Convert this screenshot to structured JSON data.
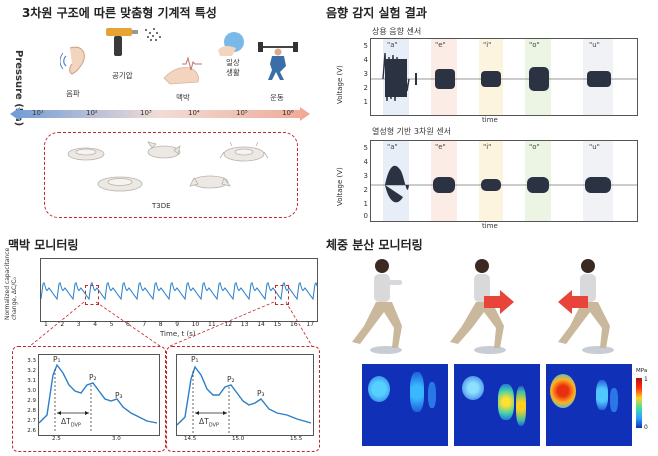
{
  "panels": {
    "top_left": {
      "title": "3차원 구조에 따른 맞춤형 기계적 특성",
      "axis_label": "Pressure\n(Pa)",
      "icons": [
        {
          "label": "음파",
          "icon": "ear-icon"
        },
        {
          "label": "공기압",
          "icon": "air-blower-icon"
        },
        {
          "label": "맥박",
          "icon": "pulse-icon"
        },
        {
          "label": "일상\n생활",
          "icon": "hand-ball-icon"
        },
        {
          "label": "운동",
          "icon": "weightlifting-icon"
        }
      ],
      "scale_ticks": [
        "10¹",
        "10²",
        "10³",
        "10⁴",
        "10⁵",
        "10⁶"
      ],
      "device_label": "T3DE"
    },
    "top_right": {
      "title": "음향 감지 실험 결과",
      "plot1_title": "상용 음향 센서",
      "plot2_title": "열성형 기반 3차원 센서",
      "ylabel": "Voltage (V)",
      "xlabel": "time",
      "yticks": [
        "0",
        "1",
        "2",
        "3",
        "4",
        "5"
      ],
      "vowels": [
        "\"a\"",
        "\"e\"",
        "\"i\"",
        "\"o\"",
        "\"u\""
      ],
      "band_colors": [
        "#b9cfe8",
        "#f3c9b8",
        "#f6dfa0",
        "#c9dfb3",
        "#d5dbe6"
      ]
    },
    "bottom_left": {
      "title": "맥박 모니터링",
      "ylabel": "Normalized capacitance\nchange, ΔC/C₀",
      "xlabel": "Time, t (s)",
      "xticks": [
        "1",
        "2",
        "3",
        "4",
        "5",
        "6",
        "7",
        "8",
        "9",
        "10",
        "11",
        "12",
        "13",
        "14",
        "15",
        "16",
        "17"
      ],
      "zoom1_xticks": [
        "2.5",
        "3.0"
      ],
      "zoom2_xticks": [
        "14.5",
        "15.0",
        "15.5"
      ],
      "zoom_yticks": [
        "2.6",
        "2.7",
        "2.8",
        "2.9",
        "3.0",
        "3.1",
        "3.2",
        "3.3"
      ],
      "peak_labels": [
        "P₁",
        "P₂",
        "P₃"
      ],
      "delta_label": "ΔT",
      "delta_sub": "DVP"
    },
    "bottom_right": {
      "title": "체중 분산 모니터링",
      "colorbar_top": "1",
      "colorbar_bottom": "0",
      "colorbar_unit": "MPa"
    }
  },
  "colors": {
    "signal_blue": "#2a7fc9",
    "dash_red": "#c0282d",
    "arrow_red": "#e8443a"
  }
}
